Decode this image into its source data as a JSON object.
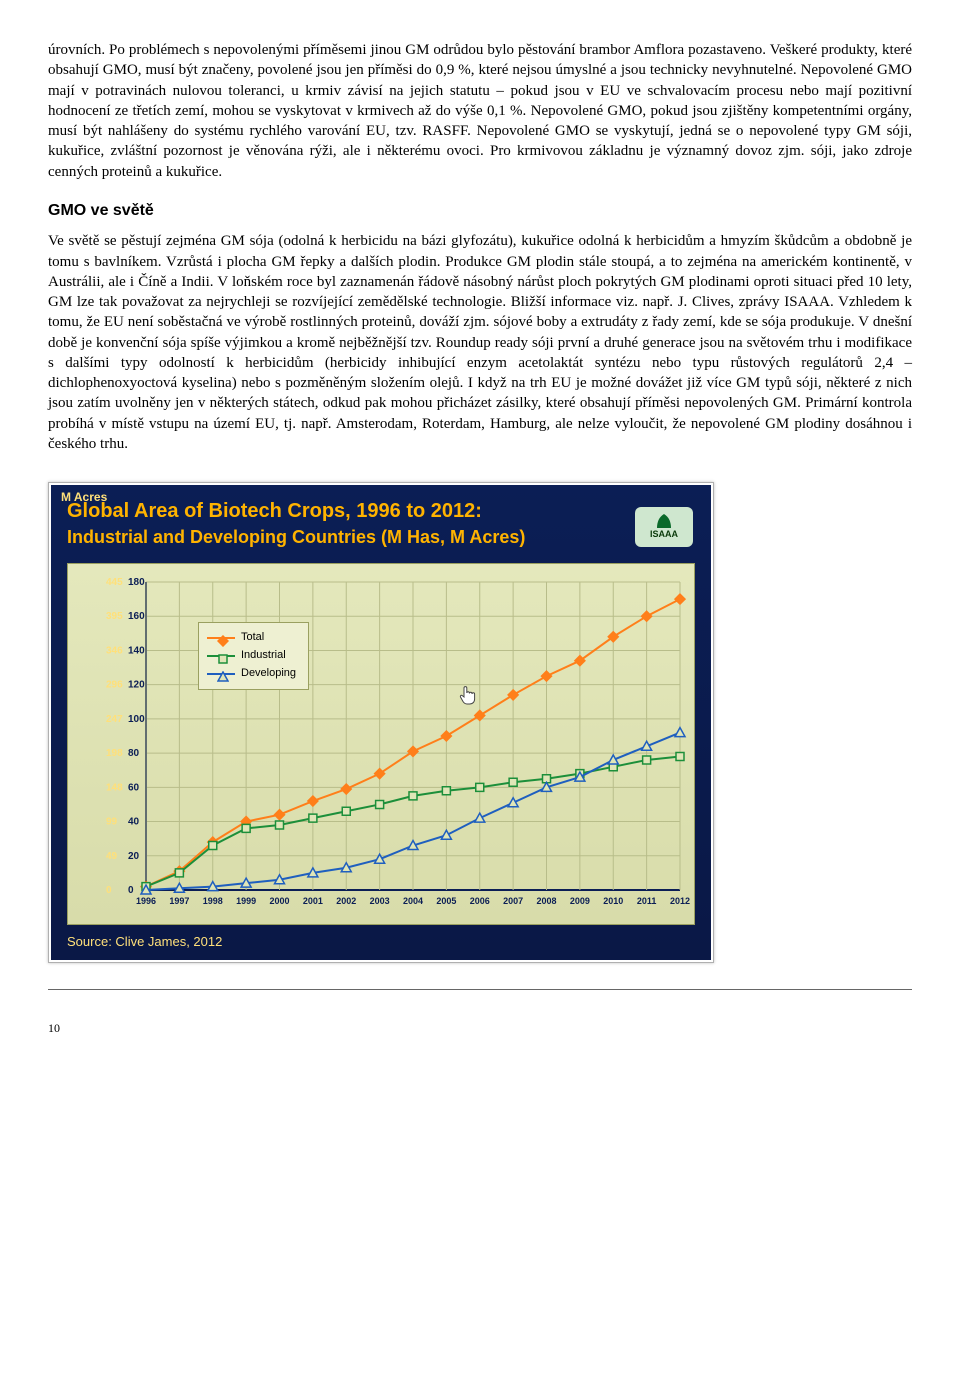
{
  "paragraph1": "úrovních. Po problémech s nepovolenými příměsemi jinou GM odrůdou bylo pěstování brambor Amflora pozastaveno. Veškeré produkty, které obsahují GMO, musí být značeny, povolené jsou jen příměsi do 0,9 %, které nejsou úmyslné a jsou technicky nevyhnutelné. Nepovolené GMO mají v potravinách nulovou toleranci, u krmiv závisí na jejich statutu – pokud jsou v EU ve schvalovacím procesu nebo mají pozitivní hodnocení ze třetích zemí, mohou se vyskytovat v krmivech až do výše 0,1 %. Nepovolené GMO, pokud jsou zjištěny kompetentními orgány, musí být nahlášeny do systému rychlého varování EU, tzv. RASFF. Nepovolené GMO se vyskytují, jedná se o nepovolené typy GM sóji, kukuřice, zvláštní pozornost je věnována rýži, ale i některému ovoci. Pro krmivovou základnu je významný dovoz zjm. sóji, jako zdroje cenných proteinů a kukuřice.",
  "heading": "GMO ve světě",
  "paragraph2": "Ve světě se pěstují zejména GM sója (odolná k herbicidu na bázi glyfozátu), kukuřice odolná k herbicidům a hmyzím škůdcům a obdobně je tomu s bavlníkem. Vzrůstá i plocha GM řepky a dalších plodin. Produkce GM plodin stále stoupá, a to zejména na americkém kontinentě, v Austrálii, ale i Číně a Indii. V loňském roce byl zaznamenán řádově násobný nárůst ploch pokrytých GM plodinami oproti situaci před 10 lety, GM lze tak považovat za nejrychleji se rozvíjející zemědělské technologie. Bližší informace viz. např. J. Clives, zprávy ISAAA. Vzhledem k tomu, že EU není soběstačná ve výrobě rostlinných proteinů, dováží zjm. sójové boby a extrudáty z řady zemí, kde se sója produkuje. V dnešní době je konvenční sója spíše výjimkou a kromě nejběžnější tzv. Roundup ready sóji první a druhé generace jsou na světovém trhu i modifikace s dalšími typy odolností k herbicidům (herbicidy inhibující enzym acetolaktát syntézu nebo typu růstových regulátorů 2,4 – dichlophenoxyoctová kyselina) nebo s pozměněným složením olejů. I když na trh EU je možné dovážet již více GM typů sóji, některé z nich jsou zatím uvolněny jen v některých státech, odkud pak mohou přicházet zásilky, které obsahují příměsi nepovolených GM. Primární kontrola probíhá v místě vstupu na území EU, tj. např. Amsterodam, Roterdam, Hamburg, ale nelze vyloučit, že nepovolené GM plodiny dosáhnou i českého trhu.",
  "chart": {
    "title_line1": "Global Area of Biotech Crops, 1996 to 2012:",
    "title_line2": "Industrial and Developing Countries (M Has, M Acres)",
    "left_axis_label": "M Acres",
    "badge_text": "ISAAA",
    "source": "Source: Clive James, 2012",
    "years": [
      1996,
      1997,
      1998,
      1999,
      2000,
      2001,
      2002,
      2003,
      2004,
      2005,
      2006,
      2007,
      2008,
      2009,
      2010,
      2011,
      2012
    ],
    "left_ticks": [
      445,
      395,
      346,
      296,
      247,
      198,
      148,
      99,
      49,
      0
    ],
    "right_ticks": [
      180,
      160,
      140,
      120,
      100,
      80,
      60,
      40,
      20,
      0
    ],
    "series": {
      "total": {
        "label": "Total",
        "color": "#ff7f1a",
        "marker": "diamond",
        "values": [
          2,
          11,
          28,
          40,
          44,
          52,
          59,
          68,
          81,
          90,
          102,
          114,
          125,
          134,
          148,
          160,
          170
        ]
      },
      "industrial": {
        "label": "Industrial",
        "color": "#1c8f3a",
        "marker": "square",
        "values": [
          2,
          10,
          26,
          36,
          38,
          42,
          46,
          50,
          55,
          58,
          60,
          63,
          65,
          68,
          72,
          76,
          78
        ]
      },
      "developing": {
        "label": "Developing",
        "color": "#1f5fbf",
        "marker": "triangle",
        "values": [
          0,
          1,
          2,
          4,
          6,
          10,
          13,
          18,
          26,
          32,
          42,
          51,
          60,
          66,
          76,
          84,
          92
        ]
      }
    },
    "ylim_right": [
      0,
      180
    ],
    "background": "#0b1e55",
    "plot_bg": "#e0e6b8",
    "grid_color": "#b8bd8a",
    "title_color": "#ffb300"
  },
  "page_number": "10"
}
